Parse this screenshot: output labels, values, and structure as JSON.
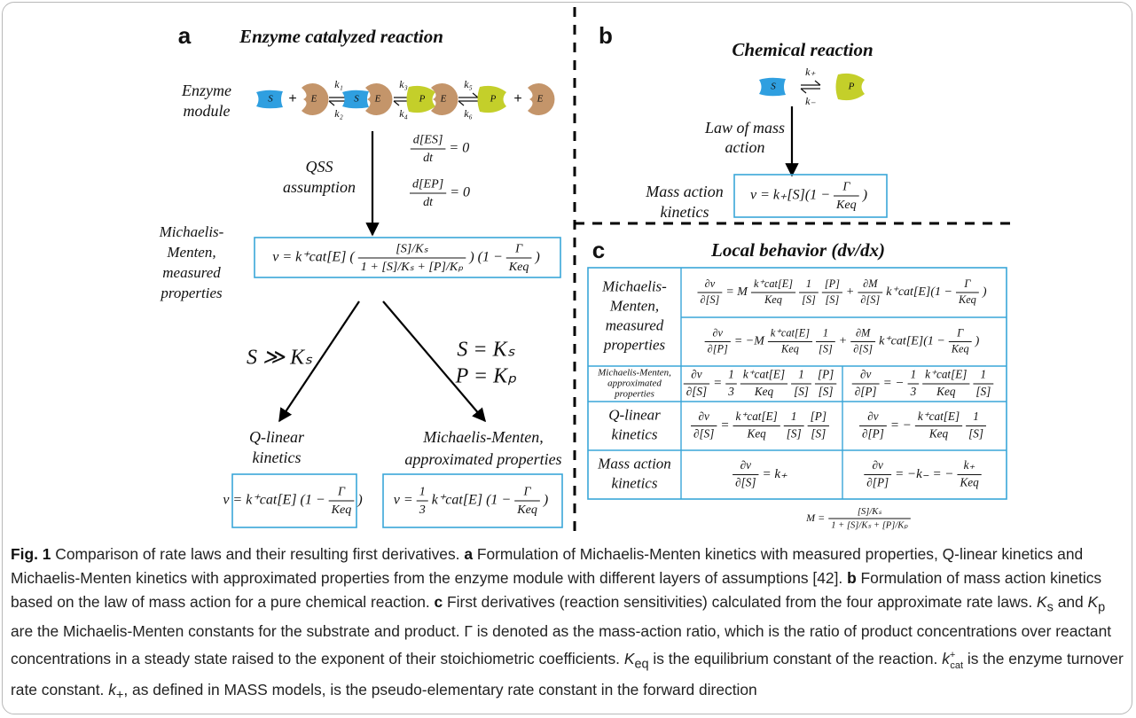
{
  "panel_a": {
    "label": "a",
    "title": "Enzyme catalyzed reaction",
    "module_label": [
      "Enzyme",
      "module"
    ],
    "reaction": [
      "S",
      "+",
      "E",
      {
        "forward": "k₁",
        "reverse": "k₂"
      },
      [
        "S",
        "E"
      ],
      {
        "forward": "k₃",
        "reverse": "k₄"
      },
      [
        "P",
        "E"
      ],
      {
        "forward": "k₅",
        "reverse": "k₆"
      },
      "P",
      "+",
      "E"
    ],
    "qss_label": [
      "QSS",
      "assumption"
    ],
    "qss_eq1": [
      {
        "num": "d[ES]",
        "den": "dt"
      },
      "= 0"
    ],
    "qss_eq2": [
      {
        "num": "d[EP]",
        "den": "dt"
      },
      "= 0"
    ],
    "mm_label": [
      "Michaelis-",
      "Menten,",
      "measured",
      "properties"
    ],
    "mm_eq": [
      "v = k⁺cat[E] (",
      {
        "num": "[S]/Kₛ",
        "den": "1 + [S]/Kₛ + [P]/Kₚ"
      },
      ") (1 −",
      {
        "num": "Γ",
        "den": "Keq"
      },
      ")"
    ],
    "branch_left": "S ≫ Kₛ",
    "branch_right": [
      "S = Kₛ",
      "P = Kₚ"
    ],
    "ql_label": [
      "Q-linear",
      "kinetics"
    ],
    "ql_eq": [
      "v = k⁺cat[E] (1 −",
      {
        "num": "Γ",
        "den": "Keq"
      },
      ")"
    ],
    "mma_label": [
      "Michaelis-Menten,",
      "approximated properties"
    ],
    "mma_eq": [
      "v =",
      {
        "num": "1",
        "den": "3"
      },
      "k⁺cat[E] (1 −",
      {
        "num": "Γ",
        "den": "Keq"
      },
      ")"
    ]
  },
  "panel_b": {
    "label": "b",
    "title": "Chemical reaction",
    "reaction": [
      "S",
      {
        "forward": "k₊",
        "reverse": "k₋"
      },
      "P"
    ],
    "law_label": [
      "Law of mass",
      "action"
    ],
    "mass_label": [
      "Mass action",
      "kinetics"
    ],
    "mass_eq": [
      "v = k₊[S](1 −",
      {
        "num": "Γ",
        "den": "Keq"
      },
      ")"
    ]
  },
  "panel_c": {
    "label": "c",
    "title": "Local behavior (dv/dx)",
    "rows": [
      {
        "label": [
          "Michaelis-",
          "Menten,",
          "measured",
          "properties"
        ],
        "cells": [
          [
            {
              "num": "∂v",
              "den": "∂[S]"
            },
            "= M",
            {
              "num": "k⁺cat[E]",
              "den": "Keq"
            },
            {
              "num": "1",
              "den": "[S]"
            },
            {
              "num": "[P]",
              "den": "[S]"
            },
            "+",
            {
              "num": "∂M",
              "den": "∂[S]"
            },
            "k⁺cat[E](1 −",
            {
              "num": "Γ",
              "den": "Keq"
            },
            ")"
          ],
          [
            {
              "num": "∂v",
              "den": "∂[P]"
            },
            "= −M",
            {
              "num": "k⁺cat[E]",
              "den": "Keq"
            },
            {
              "num": "1",
              "den": "[S]"
            },
            "+",
            {
              "num": "∂M",
              "den": "∂[S]"
            },
            "k⁺cat[E](1 −",
            {
              "num": "Γ",
              "den": "Keq"
            },
            ")"
          ]
        ]
      },
      {
        "label": [
          "Michaelis-Menten,",
          "approximated",
          "properties"
        ],
        "cells": [
          [
            {
              "num": "∂v",
              "den": "∂[S]"
            },
            "=",
            {
              "num": "1",
              "den": "3"
            },
            {
              "num": "k⁺cat[E]",
              "den": "Keq"
            },
            {
              "num": "1",
              "den": "[S]"
            },
            {
              "num": "[P]",
              "den": "[S]"
            }
          ],
          [
            {
              "num": "∂v",
              "den": "∂[P]"
            },
            "= −",
            {
              "num": "1",
              "den": "3"
            },
            {
              "num": "k⁺cat[E]",
              "den": "Keq"
            },
            {
              "num": "1",
              "den": "[S]"
            }
          ]
        ]
      },
      {
        "label": [
          "Q-linear",
          "kinetics"
        ],
        "cells": [
          [
            {
              "num": "∂v",
              "den": "∂[S]"
            },
            "=",
            {
              "num": "k⁺cat[E]",
              "den": "Keq"
            },
            {
              "num": "1",
              "den": "[S]"
            },
            {
              "num": "[P]",
              "den": "[S]"
            }
          ],
          [
            {
              "num": "∂v",
              "den": "∂[P]"
            },
            "= −",
            {
              "num": "k⁺cat[E]",
              "den": "Keq"
            },
            {
              "num": "1",
              "den": "[S]"
            }
          ]
        ]
      },
      {
        "label": [
          "Mass action",
          "kinetics"
        ],
        "cells": [
          [
            {
              "num": "∂v",
              "den": "∂[S]"
            },
            "= k₊"
          ],
          [
            {
              "num": "∂v",
              "den": "∂[P]"
            },
            "= −k₋ = −",
            {
              "num": "k₊",
              "den": "Keq"
            }
          ]
        ]
      }
    ],
    "m_def": [
      "M =",
      {
        "num": "[S]/Kₛ",
        "den": "1 + [S]/Kₛ + [P]/Kₚ"
      }
    ]
  },
  "caption": [
    "Fig. 1",
    " Comparison of rate laws and their resulting first derivatives. ",
    "a",
    " Formulation of Michaelis-Menten kinetics with measured properties, Q-linear kinetics and Michaelis-Menten kinetics with approximated properties from the enzyme module with different layers of assumptions [42]. ",
    "b",
    " Formulation of mass action kinetics based on the law of mass action for a pure chemical reaction. ",
    "c",
    " First derivatives (reaction sensitivities) calculated from the four approximate rate laws. ",
    "K",
    "s",
    " and ",
    "K",
    "p",
    " are the Michaelis-Menten constants for the substrate and product. Γ is denoted as the mass-action ratio, which is the ratio of product concentrations over reactant concentrations in a steady state raised to the exponent of their stoichiometric coefficients. ",
    "K",
    "eq",
    " is the equilibrium constant of the reaction. ",
    "k",
    "+",
    "cat",
    " is the enzyme turnover rate constant. ",
    "k",
    "+",
    ", as defined in MASS models, is the pseudo-elementary rate constant in the forward direction"
  ]
}
